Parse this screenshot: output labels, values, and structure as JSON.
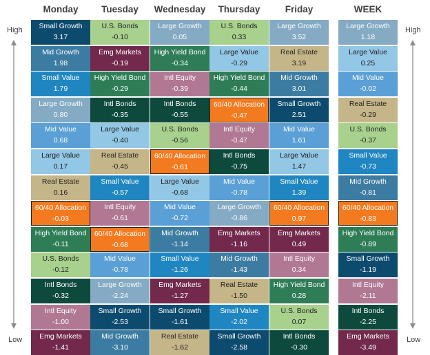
{
  "labels": {
    "high": "High",
    "low": "Low"
  },
  "chart_data": {
    "type": "table",
    "columns": [
      "Monday",
      "Tuesday",
      "Wednesday",
      "Thursday",
      "Friday",
      "WEEK"
    ],
    "colors": {
      "Small Growth": "#0c4b6e",
      "Mid Growth": "#3d7ca2",
      "Large Growth": "#84aac4",
      "Small Value": "#1f86c2",
      "Mid Value": "#5a9fd6",
      "Large Value": "#93c7e6",
      "U.S. Bonds": "#a9d18e",
      "High Yield Bond": "#2e7d57",
      "Intl Bonds": "#0d4a3d",
      "Emg Markets": "#72294b",
      "Intl Equity": "#b07893",
      "Real Estate": "#c5b689",
      "60/40 Allocation": "#f47a1f"
    },
    "cells": [
      [
        {
          "asset": "Small Growth",
          "value": "3.17"
        },
        {
          "asset": "Mid Growth",
          "value": "1.98"
        },
        {
          "asset": "Small Value",
          "value": "1.79"
        },
        {
          "asset": "Large Growth",
          "value": "0.80"
        },
        {
          "asset": "Mid Value",
          "value": "0.68"
        },
        {
          "asset": "Large Value",
          "value": "0.17"
        },
        {
          "asset": "Real Estate",
          "value": "0.16"
        },
        {
          "asset": "60/40 Allocation",
          "value": "-0.03"
        },
        {
          "asset": "High Yield Bond",
          "value": "-0.11"
        },
        {
          "asset": "U.S. Bonds",
          "value": "-0.12"
        },
        {
          "asset": "Intl Bonds",
          "value": "-0.32"
        },
        {
          "asset": "Intl Equity",
          "value": "-1.00"
        },
        {
          "asset": "Emg Markets",
          "value": "-1.41"
        }
      ],
      [
        {
          "asset": "U.S. Bonds",
          "value": "-0.10"
        },
        {
          "asset": "Emg Markets",
          "value": "-0.19"
        },
        {
          "asset": "High Yield Bond",
          "value": "-0.29"
        },
        {
          "asset": "Intl Bonds",
          "value": "-0.35"
        },
        {
          "asset": "Large Value",
          "value": "-0.40"
        },
        {
          "asset": "Real Estate",
          "value": "-0.45"
        },
        {
          "asset": "Small Value",
          "value": "-0.57"
        },
        {
          "asset": "Intl Equity",
          "value": "-0.61"
        },
        {
          "asset": "60/40 Allocation",
          "value": "-0.68"
        },
        {
          "asset": "Mid Value",
          "value": "-0.78"
        },
        {
          "asset": "Large Growth",
          "value": "-2.24"
        },
        {
          "asset": "Small Growth",
          "value": "-2.53"
        },
        {
          "asset": "Mid Growth",
          "value": "-3.10"
        }
      ],
      [
        {
          "asset": "Large Growth",
          "value": "0.05"
        },
        {
          "asset": "High Yield Bond",
          "value": "-0.34"
        },
        {
          "asset": "Intl Equity",
          "value": "-0.39"
        },
        {
          "asset": "Intl Bonds",
          "value": "-0.55"
        },
        {
          "asset": "U.S. Bonds",
          "value": "-0.56"
        },
        {
          "asset": "60/40 Allocation",
          "value": "-0.61"
        },
        {
          "asset": "Large Value",
          "value": "-0.68"
        },
        {
          "asset": "Mid Value",
          "value": "-0.72"
        },
        {
          "asset": "Mid Growth",
          "value": "-1.14"
        },
        {
          "asset": "Small Value",
          "value": "-1.26"
        },
        {
          "asset": "Emg Markets",
          "value": "-1.27"
        },
        {
          "asset": "Small Growth",
          "value": "-1.61"
        },
        {
          "asset": "Real Estate",
          "value": "-1.62"
        }
      ],
      [
        {
          "asset": "U.S. Bonds",
          "value": "0.33"
        },
        {
          "asset": "Large Value",
          "value": "-0.29"
        },
        {
          "asset": "High Yield Bond",
          "value": "-0.44"
        },
        {
          "asset": "60/40 Allocation",
          "value": "-0.47"
        },
        {
          "asset": "Intl Equity",
          "value": "-0.47"
        },
        {
          "asset": "Intl Bonds",
          "value": "-0.75"
        },
        {
          "asset": "Mid Value",
          "value": "-0.78"
        },
        {
          "asset": "Large Growth",
          "value": "-0.86"
        },
        {
          "asset": "Emg Markets",
          "value": "-1.16"
        },
        {
          "asset": "Mid Growth",
          "value": "-1.43"
        },
        {
          "asset": "Real Estate",
          "value": "-1.50"
        },
        {
          "asset": "Small Value",
          "value": "-2.02"
        },
        {
          "asset": "Small Growth",
          "value": "-2.58"
        }
      ],
      [
        {
          "asset": "Large Growth",
          "value": "3.52"
        },
        {
          "asset": "Real Estate",
          "value": "3.19"
        },
        {
          "asset": "Mid Growth",
          "value": "3.01"
        },
        {
          "asset": "Small Growth",
          "value": "2.51"
        },
        {
          "asset": "Mid Value",
          "value": "1.61"
        },
        {
          "asset": "Large Value",
          "value": "1.47"
        },
        {
          "asset": "Small Value",
          "value": "1.39"
        },
        {
          "asset": "60/40 Allocation",
          "value": "0.97"
        },
        {
          "asset": "Emg Markets",
          "value": "0.49"
        },
        {
          "asset": "Intl Equity",
          "value": "0.34"
        },
        {
          "asset": "High Yield Bond",
          "value": "0.28"
        },
        {
          "asset": "U.S. Bonds",
          "value": "0.07"
        },
        {
          "asset": "Intl Bonds",
          "value": "-0.30"
        }
      ],
      [
        {
          "asset": "Large Growth",
          "value": "1.18"
        },
        {
          "asset": "Large Value",
          "value": "0.25"
        },
        {
          "asset": "Mid Value",
          "value": "-0.02"
        },
        {
          "asset": "Real Estate",
          "value": "-0.29"
        },
        {
          "asset": "U.S. Bonds",
          "value": "-0.37"
        },
        {
          "asset": "Small Value",
          "value": "-0.73"
        },
        {
          "asset": "Mid Growth",
          "value": "-0.81"
        },
        {
          "asset": "60/40 Allocation",
          "value": "-0.83"
        },
        {
          "asset": "High Yield Bond",
          "value": "-0.89"
        },
        {
          "asset": "Small Growth",
          "value": "-1.19"
        },
        {
          "asset": "Intl Equity",
          "value": "-2.11"
        },
        {
          "asset": "Intl Bonds",
          "value": "-2.25"
        },
        {
          "asset": "Emg Markets",
          "value": "-3.49"
        }
      ]
    ]
  }
}
